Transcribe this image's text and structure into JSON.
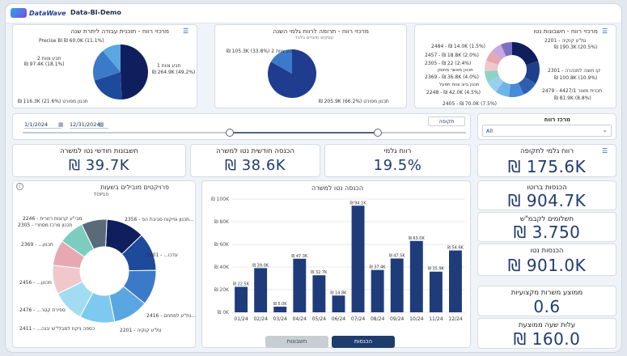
{
  "app": {
    "brand": "DataWave",
    "title": "Data-BI-Demo"
  },
  "top_charts": {
    "left": {
      "title": "מרכזי רווח - תוכנית עבודה ליתרת שנה",
      "labels": [
        "Precise BI ₪ 60.0K (11.1%)",
        "תבע צוות 2",
        "₪ 97.4K (18.1%)",
        "₪ 116.3K (21.6%) תכנון מפורט",
        "1 תבע צוות",
        "₪ 264.9K (49.2%)"
      ]
    },
    "middle": {
      "title": "מרכזי רווח - תרומה לרווח גלמי השנה",
      "subtitle": "עסקים חיוביים בלבד",
      "labels": [
        "₪ 105.3K (33.8%) תבע צוות 2",
        "₪ 205.9K (66.2%) תכנון מפורט"
      ]
    },
    "right": {
      "title": "מרכזי רווח - חשבונות נטו",
      "labels_left": [
        "2484 - ₪ 14.0K (1.5%)",
        "2457 - ₪ 18.8K (2.0%)",
        "2305 - ₪ 22 (2.4%)",
        "2369 - ₪ 36.8K (4.0%)",
        "2248 - ₪ 42.0K (4.5%)",
        "2405 - ₪ 70.0K (7.5%)"
      ],
      "labels_left_names": [
        "",
        "",
        "",
        "תכנון מאשר מתומן",
        "תכנון ביוב צוות תפעל",
        ""
      ],
      "labels_right": [
        "נת\"ע קוקיה - 2201",
        "₪ 190.3K (20.5%)",
        "קו חוצה למנהרה - 2301",
        "₪ 100.8K (10.9%)",
        "2479 - 4427/1 תכנית מאור",
        "₪ 81.9K (8.8%)"
      ]
    }
  },
  "filters": {
    "date_from": "1/1/2024",
    "date_to": "12/31/2024",
    "period_label": "תקופה",
    "profit_center_label": "מרכז רווח",
    "profit_center_value": "All"
  },
  "kpis": {
    "net_monthly_invoices": {
      "label": "חשבונות חודשי נטו למשרה",
      "value": "₪ 39.7K"
    },
    "net_monthly_income": {
      "label": "הכנסה חודשית נטו למשרה",
      "value": "₪ 38.6K"
    },
    "gross_profit": {
      "label": "רווח גלמי",
      "value": "19.5%"
    },
    "gross_profit_period": {
      "label": "רווח גלמי לתקופה",
      "value": "₪ 175.6K"
    },
    "gross_income": {
      "label": "הכנסות ברוטו",
      "value": "₪ 904.7K"
    },
    "subcontractor_payments": {
      "label": "תשלומים לקבמ\"ש",
      "value": "₪ 3.750"
    },
    "net_income": {
      "label": "הכנסות נטו",
      "value": "₪ 901.0K"
    },
    "avg_professional_positions": {
      "label": "ממוצע משרות מקצועיות",
      "value": "0.6"
    },
    "avg_hourly_cost": {
      "label": "עלות שעה ממוצעת",
      "value": "₪ 160.0"
    }
  },
  "projects_chart": {
    "title": "פרויקטים מובילים בשעות",
    "subtitle": "TOP10",
    "labels": [
      "2356 - תכנון ופיקוח סביבת הפ...",
      "1801 - ...עדכו",
      "2416 - נת\"ע למתחם...",
      "2201 - נת\"ע קוקיה",
      "2411 - ...כספה ניקוז למבלי\"ש יבנה",
      "2476 - ...ספירת קטר",
      "2456 - ...תכנון",
      "2369 - ...תכנון",
      "2305 - תכנון מרכז מסחרי",
      "2246 - מבי\"ע קרונות רזורית"
    ],
    "colors": [
      "#0f1e5c",
      "#1e4a9c",
      "#3b7ac9",
      "#5aa6e0",
      "#7ec9ef",
      "#a2dcf2",
      "#f0c8cc",
      "#e6a9b2",
      "#7ccdc0",
      "#5a6a78"
    ]
  },
  "bar_chart": {
    "title": "הכנסה נטו למשרה",
    "toggle": {
      "invoices": "חשבונות",
      "income": "הכנסות"
    }
  },
  "chart_data": {
    "type": "bar",
    "title": "הכנסה נטו למשרה",
    "categories": [
      "01/24",
      "02/24",
      "03/24",
      "04/24",
      "05/24",
      "06/24",
      "07/24",
      "08/24",
      "09/24",
      "10/24",
      "11/24",
      "12/24"
    ],
    "values": [
      22.5,
      39.0,
      5.0,
      47.3,
      32.7,
      14.8,
      94.1,
      37.4,
      47.5,
      63.0,
      35.9,
      54.6
    ],
    "data_labels": [
      "₪ 22.5K",
      "₪ 39.0K",
      "₪ 5.0K",
      "₪ 47.3K",
      "₪ 32.7K",
      "₪ 14.8K",
      "₪ 94.1K",
      "₪ 37.4K",
      "₪ 47.5K",
      "₪ 63.0K",
      "₪ 35.9K",
      "₪ 54.6K"
    ],
    "y_ticks": [
      "₪ 0K",
      "₪ 20K",
      "₪ 40K",
      "₪ 60K",
      "₪ 80K",
      "₪ 100K"
    ],
    "ylim": [
      0,
      100
    ],
    "color": "#1f3c7a"
  }
}
